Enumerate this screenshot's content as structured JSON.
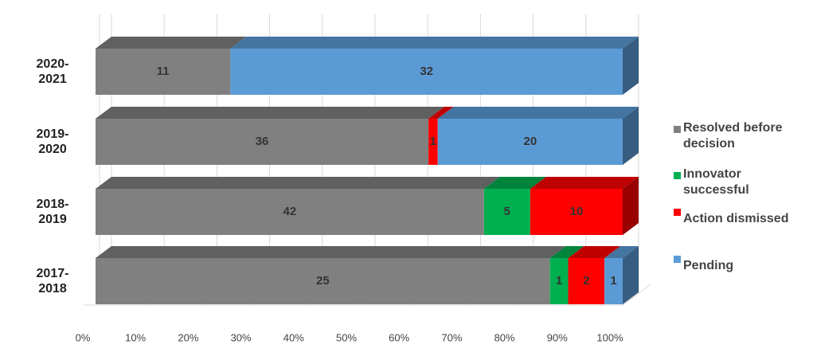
{
  "chart_data": {
    "type": "stacked-bar-100",
    "categories": [
      "2020-2021",
      "2019-2020",
      "2018-2019",
      "2017-2018"
    ],
    "series": [
      {
        "name": "Resolved before decision",
        "color": "#808080",
        "values": [
          11,
          36,
          42,
          25
        ]
      },
      {
        "name": "Innovator successful",
        "color": "#00b050",
        "values": [
          null,
          null,
          5,
          1
        ]
      },
      {
        "name": "Action dismissed",
        "color": "#ff0000",
        "values": [
          null,
          1,
          10,
          2
        ]
      },
      {
        "name": "Pending",
        "color": "#5b9bd5",
        "values": [
          32,
          20,
          null,
          1
        ]
      }
    ],
    "xlim": [
      0,
      100
    ],
    "xticks": [
      {
        "value": 0,
        "label": "0%"
      },
      {
        "value": 10,
        "label": "10%"
      },
      {
        "value": 20,
        "label": "20%"
      },
      {
        "value": 30,
        "label": "30%"
      },
      {
        "value": 40,
        "label": "40%"
      },
      {
        "value": 50,
        "label": "50%"
      },
      {
        "value": 60,
        "label": "60%"
      },
      {
        "value": 70,
        "label": "70%"
      },
      {
        "value": 80,
        "label": "80%"
      },
      {
        "value": 90,
        "label": "90%"
      },
      {
        "value": 100,
        "label": "100%"
      }
    ],
    "grid": true,
    "legend": "right"
  }
}
